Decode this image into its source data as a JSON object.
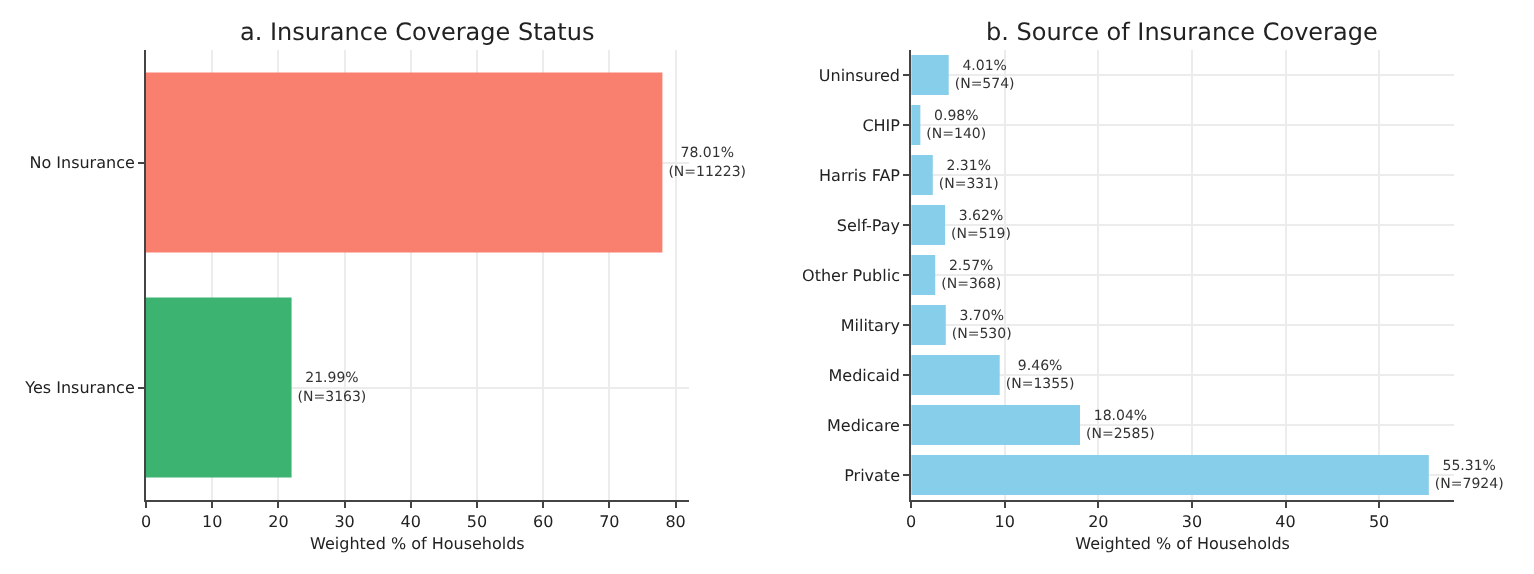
{
  "chart_data": [
    {
      "type": "bar",
      "orientation": "horizontal",
      "title": "a. Insurance Coverage Status",
      "xlabel": "Weighted % of Households",
      "categories": [
        "No Insurance",
        "Yes Insurance"
      ],
      "values": [
        78.01,
        21.99
      ],
      "colors": [
        "#f97f6e",
        "#3cb371"
      ],
      "value_labels": [
        "78.01%\n(N=11223)",
        "21.99%\n(N=3163)"
      ],
      "xlim": [
        0,
        82
      ],
      "xticks": [
        0,
        10,
        20,
        30,
        40,
        50,
        60,
        70,
        80
      ],
      "grid": true
    },
    {
      "type": "bar",
      "orientation": "horizontal",
      "title": "b. Source of Insurance Coverage",
      "xlabel": "Weighted % of Households",
      "categories": [
        "Uninsured",
        "CHIP",
        "Harris FAP",
        "Self-Pay",
        "Other Public",
        "Military",
        "Medicaid",
        "Medicare",
        "Private"
      ],
      "values": [
        4.01,
        0.98,
        2.31,
        3.62,
        2.57,
        3.7,
        9.46,
        18.04,
        55.31
      ],
      "color": "#87ceeb",
      "value_labels": [
        "4.01%\n(N=574)",
        "0.98%\n(N=140)",
        "2.31%\n(N=331)",
        "3.62%\n(N=519)",
        "2.57%\n(N=368)",
        "3.70%\n(N=530)",
        "9.46%\n(N=1355)",
        "18.04%\n(N=2585)",
        "55.31%\n(N=7924)"
      ],
      "xlim": [
        0,
        58
      ],
      "xticks": [
        0,
        10,
        20,
        30,
        40,
        50
      ],
      "grid": true
    }
  ]
}
